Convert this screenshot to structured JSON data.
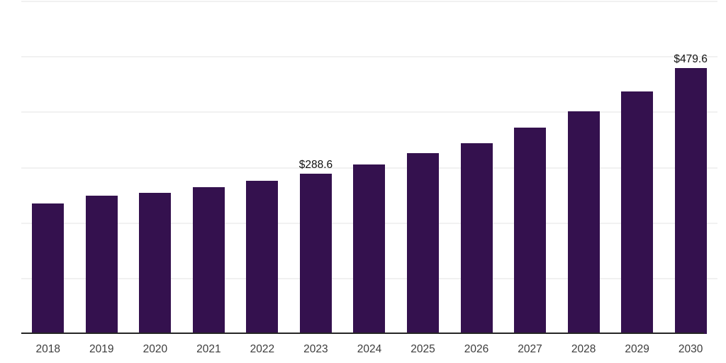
{
  "chart_data": {
    "type": "bar",
    "title": "",
    "xlabel": "",
    "ylabel": "",
    "categories": [
      "2018",
      "2019",
      "2020",
      "2021",
      "2022",
      "2023",
      "2024",
      "2025",
      "2026",
      "2027",
      "2028",
      "2029",
      "2030"
    ],
    "values": [
      236.0,
      249.4,
      255.1,
      264.7,
      276.4,
      288.6,
      306.2,
      326.0,
      344.8,
      372.5,
      401.8,
      437.5,
      479.6
    ],
    "data_labels": {
      "2023": "$288.6",
      "2030": "$479.6"
    },
    "ylim": [
      0,
      600
    ],
    "gridline_interval": 100,
    "grid": "horizontal",
    "legend": "none",
    "y_axis_labels_visible": false,
    "bar_color": "#34114E",
    "gridline_color": "#F1F1F1",
    "axis_line_color": "#262626",
    "tick_label_color": "#3C3C3C",
    "value_label_color": "#111111"
  }
}
